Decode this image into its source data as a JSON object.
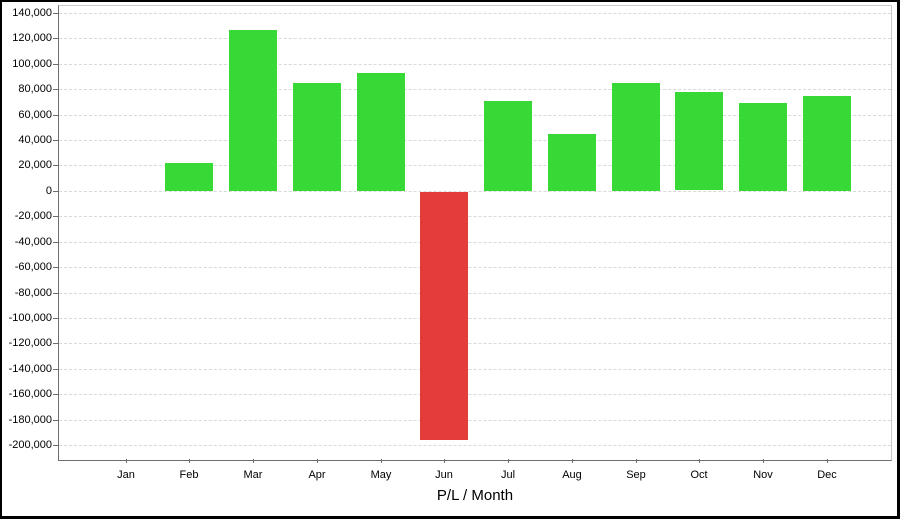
{
  "window": {
    "background": "#ffffff",
    "border_color": "#000000"
  },
  "chart_data": {
    "type": "bar",
    "title": "P/L / Month",
    "xlabel": "",
    "ylabel": "",
    "legend": "none",
    "grid": {
      "orientation": "horizontal",
      "style": "dashed",
      "color": "#d9d9d9"
    },
    "axis_color": "#6e6e6e",
    "plot_border_color": "#c9c9c9",
    "categories": [
      "Jan",
      "Feb",
      "Mar",
      "Apr",
      "May",
      "Jun",
      "Jul",
      "Aug",
      "Sep",
      "Oct",
      "Nov",
      "Dec"
    ],
    "values": [
      0,
      22000,
      127000,
      85000,
      93000,
      -195500,
      71000,
      45000,
      85000,
      77500,
      69500,
      75000
    ],
    "bar_colors": {
      "positive": "#36d936",
      "negative": "#e43b3b"
    },
    "ylim": [
      -200000,
      140000
    ],
    "ytick_step": 20000,
    "ytick_values": [
      140000,
      120000,
      100000,
      80000,
      60000,
      40000,
      20000,
      0,
      -20000,
      -40000,
      -60000,
      -80000,
      -100000,
      -120000,
      -140000,
      -160000,
      -180000,
      -200000
    ],
    "ytick_labels": [
      "140,000",
      "120,000",
      "100,000",
      "80,000",
      "60,000",
      "40,000",
      "20,000",
      "0",
      "-20,000",
      "-40,000",
      "-60,000",
      "-80,000",
      "-100,000",
      "-120,000",
      "-140,000",
      "-160,000",
      "-180,000",
      "-200,000"
    ]
  }
}
